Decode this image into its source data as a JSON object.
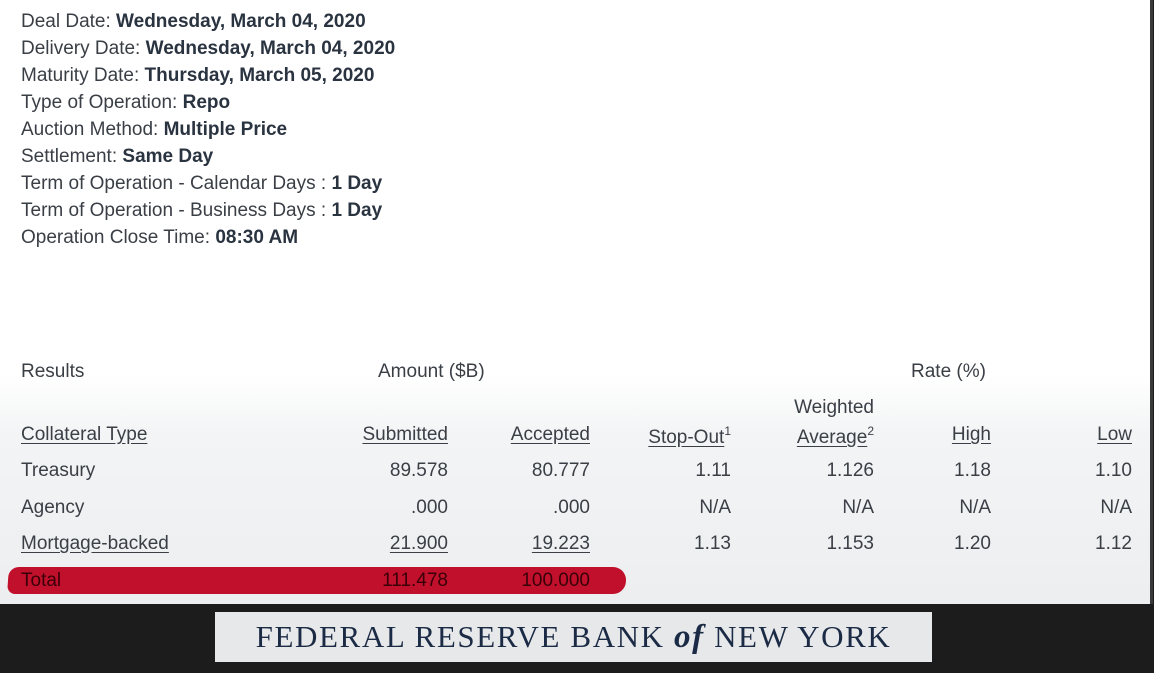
{
  "details": [
    {
      "label": "Deal Date: ",
      "value": "Wednesday, March 04, 2020"
    },
    {
      "label": "Delivery Date: ",
      "value": "Wednesday, March 04, 2020"
    },
    {
      "label": "Maturity Date: ",
      "value": "Thursday, March 05, 2020"
    },
    {
      "label": "Type of Operation: ",
      "value": "Repo"
    },
    {
      "label": "Auction Method: ",
      "value": "Multiple Price"
    },
    {
      "label": "Settlement: ",
      "value": "Same Day"
    },
    {
      "label": "Term of Operation - Calendar Days : ",
      "value": "1 Day"
    },
    {
      "label": "Term of Operation - Business Days : ",
      "value": "1 Day"
    },
    {
      "label": "Operation Close Time: ",
      "value": "08:30 AM"
    }
  ],
  "results": {
    "section_label": "Results",
    "amount_group": "Amount ($B)",
    "rate_group": "Rate (%)",
    "headers": {
      "collateral": "Collateral Type",
      "submitted": "Submitted",
      "accepted": "Accepted",
      "stop_out": "Stop-Out",
      "stop_out_note": "1",
      "weighted_line1": "Weighted",
      "weighted_line2": "Average",
      "weighted_note": "2",
      "high": "High",
      "low": "Low"
    },
    "rows": [
      {
        "type": "Treasury",
        "submitted": "89.578",
        "accepted": "80.777",
        "stop_out": "1.11",
        "weighted": "1.126",
        "high": "1.18",
        "low": "1.10"
      },
      {
        "type": "Agency",
        "submitted": ".000",
        "accepted": ".000",
        "stop_out": "N/A",
        "weighted": "N/A",
        "high": "N/A",
        "low": "N/A"
      },
      {
        "type": "Mortgage-backed",
        "submitted": "21.900",
        "accepted": "19.223",
        "stop_out": "1.13",
        "weighted": "1.153",
        "high": "1.20",
        "low": "1.12"
      }
    ],
    "total": {
      "label": "Total",
      "submitted": "111.478",
      "accepted": "100.000"
    }
  },
  "banner": {
    "part1": "FEDERAL RESERVE BANK ",
    "part2": "of",
    "part3": " NEW YORK"
  },
  "colors": {
    "highlight": "#c0102c",
    "banner_text": "#1c2b45"
  }
}
